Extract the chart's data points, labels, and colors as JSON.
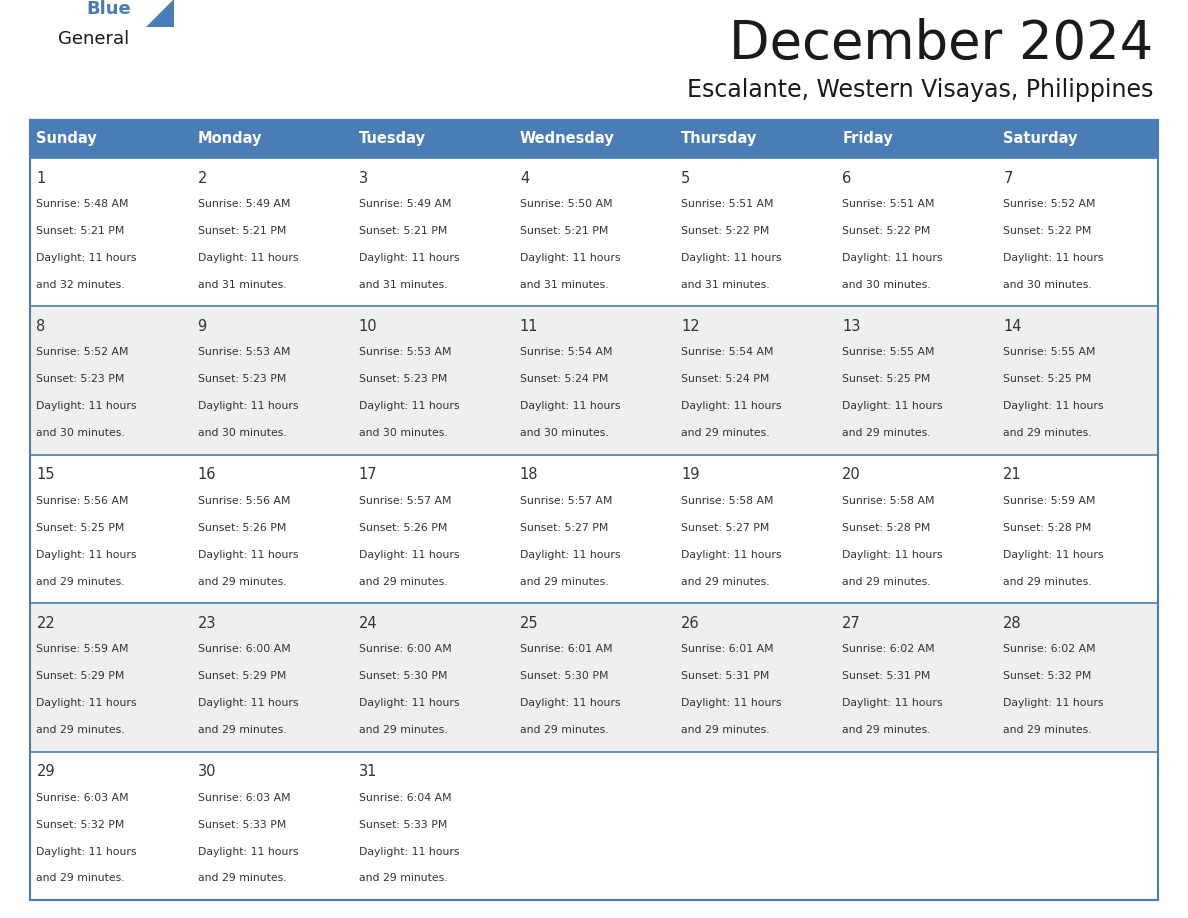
{
  "title": "December 2024",
  "subtitle": "Escalante, Western Visayas, Philippines",
  "header_bg_color": "#4A7DB5",
  "header_text_color": "#FFFFFF",
  "cell_bg_even": "#EFEFEF",
  "cell_bg_odd": "#FFFFFF",
  "border_color": "#4A7DB5",
  "day_names": [
    "Sunday",
    "Monday",
    "Tuesday",
    "Wednesday",
    "Thursday",
    "Friday",
    "Saturday"
  ],
  "title_color": "#1a1a1a",
  "subtitle_color": "#1a1a1a",
  "days": [
    {
      "day": 1,
      "col": 0,
      "row": 0,
      "sunrise": "5:48 AM",
      "sunset": "5:21 PM",
      "daylight": "11 hours and 32 minutes."
    },
    {
      "day": 2,
      "col": 1,
      "row": 0,
      "sunrise": "5:49 AM",
      "sunset": "5:21 PM",
      "daylight": "11 hours and 31 minutes."
    },
    {
      "day": 3,
      "col": 2,
      "row": 0,
      "sunrise": "5:49 AM",
      "sunset": "5:21 PM",
      "daylight": "11 hours and 31 minutes."
    },
    {
      "day": 4,
      "col": 3,
      "row": 0,
      "sunrise": "5:50 AM",
      "sunset": "5:21 PM",
      "daylight": "11 hours and 31 minutes."
    },
    {
      "day": 5,
      "col": 4,
      "row": 0,
      "sunrise": "5:51 AM",
      "sunset": "5:22 PM",
      "daylight": "11 hours and 31 minutes."
    },
    {
      "day": 6,
      "col": 5,
      "row": 0,
      "sunrise": "5:51 AM",
      "sunset": "5:22 PM",
      "daylight": "11 hours and 30 minutes."
    },
    {
      "day": 7,
      "col": 6,
      "row": 0,
      "sunrise": "5:52 AM",
      "sunset": "5:22 PM",
      "daylight": "11 hours and 30 minutes."
    },
    {
      "day": 8,
      "col": 0,
      "row": 1,
      "sunrise": "5:52 AM",
      "sunset": "5:23 PM",
      "daylight": "11 hours and 30 minutes."
    },
    {
      "day": 9,
      "col": 1,
      "row": 1,
      "sunrise": "5:53 AM",
      "sunset": "5:23 PM",
      "daylight": "11 hours and 30 minutes."
    },
    {
      "day": 10,
      "col": 2,
      "row": 1,
      "sunrise": "5:53 AM",
      "sunset": "5:23 PM",
      "daylight": "11 hours and 30 minutes."
    },
    {
      "day": 11,
      "col": 3,
      "row": 1,
      "sunrise": "5:54 AM",
      "sunset": "5:24 PM",
      "daylight": "11 hours and 30 minutes."
    },
    {
      "day": 12,
      "col": 4,
      "row": 1,
      "sunrise": "5:54 AM",
      "sunset": "5:24 PM",
      "daylight": "11 hours and 29 minutes."
    },
    {
      "day": 13,
      "col": 5,
      "row": 1,
      "sunrise": "5:55 AM",
      "sunset": "5:25 PM",
      "daylight": "11 hours and 29 minutes."
    },
    {
      "day": 14,
      "col": 6,
      "row": 1,
      "sunrise": "5:55 AM",
      "sunset": "5:25 PM",
      "daylight": "11 hours and 29 minutes."
    },
    {
      "day": 15,
      "col": 0,
      "row": 2,
      "sunrise": "5:56 AM",
      "sunset": "5:25 PM",
      "daylight": "11 hours and 29 minutes."
    },
    {
      "day": 16,
      "col": 1,
      "row": 2,
      "sunrise": "5:56 AM",
      "sunset": "5:26 PM",
      "daylight": "11 hours and 29 minutes."
    },
    {
      "day": 17,
      "col": 2,
      "row": 2,
      "sunrise": "5:57 AM",
      "sunset": "5:26 PM",
      "daylight": "11 hours and 29 minutes."
    },
    {
      "day": 18,
      "col": 3,
      "row": 2,
      "sunrise": "5:57 AM",
      "sunset": "5:27 PM",
      "daylight": "11 hours and 29 minutes."
    },
    {
      "day": 19,
      "col": 4,
      "row": 2,
      "sunrise": "5:58 AM",
      "sunset": "5:27 PM",
      "daylight": "11 hours and 29 minutes."
    },
    {
      "day": 20,
      "col": 5,
      "row": 2,
      "sunrise": "5:58 AM",
      "sunset": "5:28 PM",
      "daylight": "11 hours and 29 minutes."
    },
    {
      "day": 21,
      "col": 6,
      "row": 2,
      "sunrise": "5:59 AM",
      "sunset": "5:28 PM",
      "daylight": "11 hours and 29 minutes."
    },
    {
      "day": 22,
      "col": 0,
      "row": 3,
      "sunrise": "5:59 AM",
      "sunset": "5:29 PM",
      "daylight": "11 hours and 29 minutes."
    },
    {
      "day": 23,
      "col": 1,
      "row": 3,
      "sunrise": "6:00 AM",
      "sunset": "5:29 PM",
      "daylight": "11 hours and 29 minutes."
    },
    {
      "day": 24,
      "col": 2,
      "row": 3,
      "sunrise": "6:00 AM",
      "sunset": "5:30 PM",
      "daylight": "11 hours and 29 minutes."
    },
    {
      "day": 25,
      "col": 3,
      "row": 3,
      "sunrise": "6:01 AM",
      "sunset": "5:30 PM",
      "daylight": "11 hours and 29 minutes."
    },
    {
      "day": 26,
      "col": 4,
      "row": 3,
      "sunrise": "6:01 AM",
      "sunset": "5:31 PM",
      "daylight": "11 hours and 29 minutes."
    },
    {
      "day": 27,
      "col": 5,
      "row": 3,
      "sunrise": "6:02 AM",
      "sunset": "5:31 PM",
      "daylight": "11 hours and 29 minutes."
    },
    {
      "day": 28,
      "col": 6,
      "row": 3,
      "sunrise": "6:02 AM",
      "sunset": "5:32 PM",
      "daylight": "11 hours and 29 minutes."
    },
    {
      "day": 29,
      "col": 0,
      "row": 4,
      "sunrise": "6:03 AM",
      "sunset": "5:32 PM",
      "daylight": "11 hours and 29 minutes."
    },
    {
      "day": 30,
      "col": 1,
      "row": 4,
      "sunrise": "6:03 AM",
      "sunset": "5:33 PM",
      "daylight": "11 hours and 29 minutes."
    },
    {
      "day": 31,
      "col": 2,
      "row": 4,
      "sunrise": "6:04 AM",
      "sunset": "5:33 PM",
      "daylight": "11 hours and 29 minutes."
    }
  ],
  "logo_text1": "General",
  "logo_text2": "Blue",
  "logo_color1": "#1a1a1a",
  "logo_color2": "#4A7DB5",
  "logo_triangle_color": "#4A7DB5",
  "fig_width": 11.88,
  "fig_height": 9.18,
  "dpi": 100
}
